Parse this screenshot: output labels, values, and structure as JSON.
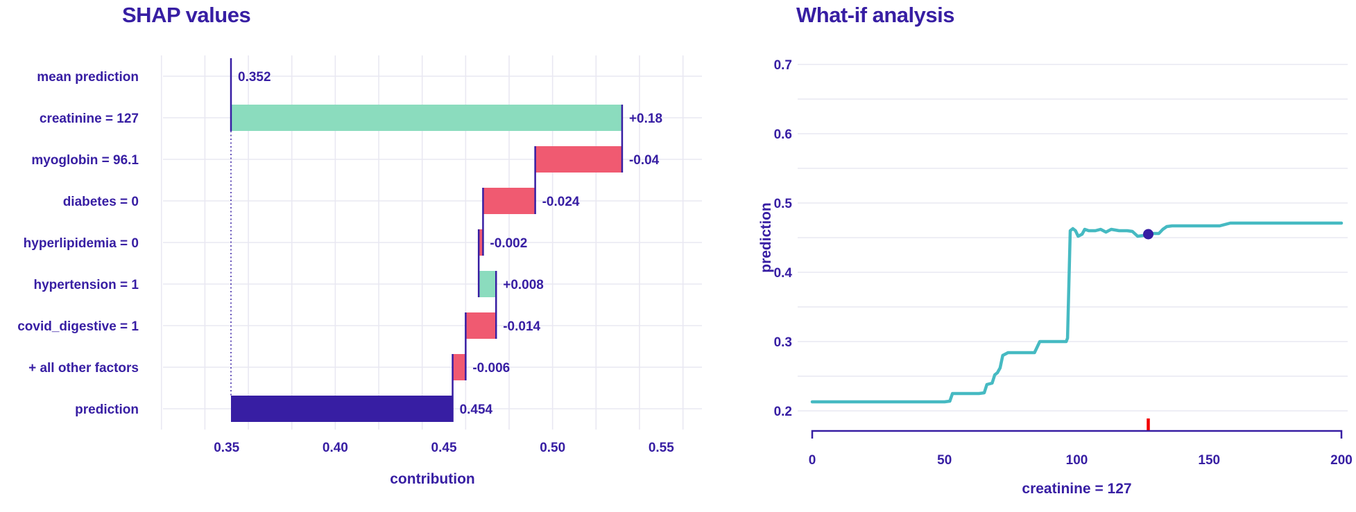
{
  "page": {
    "background": "#ffffff"
  },
  "colors": {
    "indigo": "#371ea3",
    "green": "#8bdcbe",
    "red": "#f05a71",
    "teal": "#46bac2",
    "rug_red": "#f20000",
    "grid": "#e9e8f2",
    "background": "#ffffff"
  },
  "chart_data": [
    {
      "type": "waterfall",
      "title": "SHAP values",
      "xlabel": "contribution",
      "x_range": [
        0.3207,
        0.5688
      ],
      "x_ticks": [
        {
          "v": 0.35,
          "label": "0.35"
        },
        {
          "v": 0.4,
          "label": "0.40"
        },
        {
          "v": 0.45,
          "label": "0.45"
        },
        {
          "v": 0.5,
          "label": "0.50"
        },
        {
          "v": 0.55,
          "label": "0.55"
        }
      ],
      "x_grid": {
        "min": 0.32,
        "max": 0.56,
        "step": 0.02
      },
      "baseline": 0.352,
      "grid_on": true,
      "rows": [
        {
          "category": "mean prediction",
          "start": 0.352,
          "end": 0.352,
          "kind": "baseline",
          "value_label": "0.352"
        },
        {
          "category": "creatinine = 127",
          "start": 0.352,
          "end": 0.532,
          "kind": "increase",
          "value_label": "+0.18"
        },
        {
          "category": "myoglobin = 96.1",
          "start": 0.532,
          "end": 0.492,
          "kind": "decrease",
          "value_label": "-0.04"
        },
        {
          "category": "diabetes = 0",
          "start": 0.492,
          "end": 0.468,
          "kind": "decrease",
          "value_label": "-0.024"
        },
        {
          "category": "hyperlipidemia = 0",
          "start": 0.468,
          "end": 0.466,
          "kind": "decrease",
          "value_label": "-0.002"
        },
        {
          "category": "hypertension = 1",
          "start": 0.466,
          "end": 0.474,
          "kind": "increase",
          "value_label": "+0.008"
        },
        {
          "category": "covid_digestive = 1",
          "start": 0.474,
          "end": 0.46,
          "kind": "decrease",
          "value_label": "-0.014"
        },
        {
          "category": "+ all other factors",
          "start": 0.46,
          "end": 0.454,
          "kind": "decrease",
          "value_label": "-0.006"
        },
        {
          "category": "prediction",
          "start": 0.352,
          "end": 0.454,
          "kind": "total",
          "value_label": "0.454"
        }
      ]
    },
    {
      "type": "line",
      "title": "What-if analysis",
      "xlabel": "creatinine = 127",
      "ylabel": "prediction",
      "x_range": [
        0,
        200
      ],
      "y_range": [
        0.2,
        0.7
      ],
      "x_ticks": [
        {
          "v": 0,
          "label": "0"
        },
        {
          "v": 50,
          "label": "50"
        },
        {
          "v": 100,
          "label": "100"
        },
        {
          "v": 150,
          "label": "150"
        },
        {
          "v": 200,
          "label": "200"
        }
      ],
      "y_ticks": [
        {
          "v": 0.2,
          "label": "0.2"
        },
        {
          "v": 0.3,
          "label": "0.3"
        },
        {
          "v": 0.4,
          "label": "0.4"
        },
        {
          "v": 0.5,
          "label": "0.5"
        },
        {
          "v": 0.6,
          "label": "0.6"
        },
        {
          "v": 0.7,
          "label": "0.7"
        }
      ],
      "y_grid_step": 0.05,
      "grid_on": true,
      "legend_position": "none",
      "series": [
        {
          "name": "ceteris-paribus-profile",
          "points": [
            [
              0,
              0.213
            ],
            [
              50,
              0.213
            ],
            [
              52,
              0.214
            ],
            [
              53,
              0.225
            ],
            [
              63,
              0.225
            ],
            [
              65,
              0.226
            ],
            [
              66,
              0.238
            ],
            [
              68,
              0.24
            ],
            [
              69,
              0.252
            ],
            [
              70,
              0.255
            ],
            [
              71,
              0.262
            ],
            [
              72,
              0.28
            ],
            [
              74,
              0.284
            ],
            [
              84,
              0.284
            ],
            [
              85,
              0.292
            ],
            [
              86,
              0.3
            ],
            [
              96,
              0.3
            ],
            [
              96.5,
              0.305
            ],
            [
              97.5,
              0.46
            ],
            [
              98.5,
              0.463
            ],
            [
              99.5,
              0.46
            ],
            [
              100.5,
              0.452
            ],
            [
              102,
              0.455
            ],
            [
              103,
              0.462
            ],
            [
              104.5,
              0.46
            ],
            [
              107,
              0.46
            ],
            [
              109,
              0.462
            ],
            [
              111,
              0.458
            ],
            [
              113,
              0.462
            ],
            [
              116,
              0.46
            ],
            [
              119,
              0.46
            ],
            [
              121,
              0.459
            ],
            [
              123,
              0.452
            ],
            [
              125,
              0.453
            ],
            [
              127,
              0.455
            ],
            [
              129,
              0.456
            ],
            [
              131,
              0.456
            ],
            [
              132.5,
              0.462
            ],
            [
              134,
              0.466
            ],
            [
              136,
              0.467
            ],
            [
              154,
              0.467
            ],
            [
              156,
              0.469
            ],
            [
              158,
              0.471
            ],
            [
              200,
              0.471
            ]
          ]
        }
      ],
      "marker": {
        "x": 127,
        "y": 0.455
      },
      "rug": {
        "x": 127
      }
    }
  ]
}
